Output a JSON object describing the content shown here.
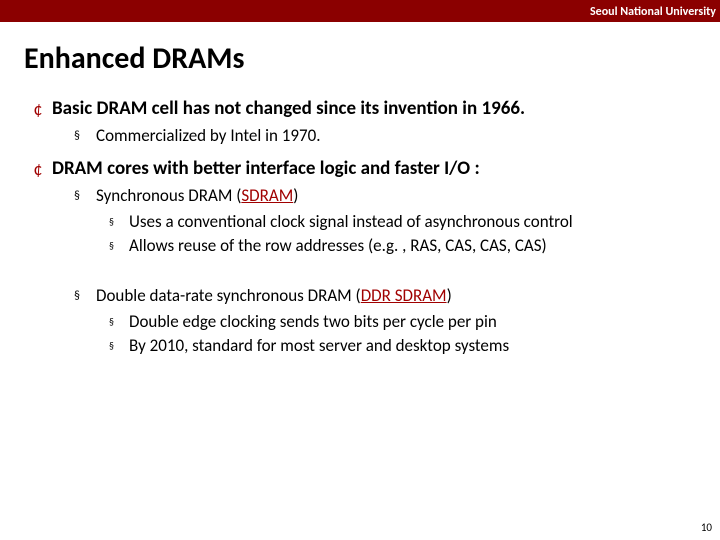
{
  "header": {
    "institution": "Seoul National University",
    "bar_color": "#8b0000",
    "text_color": "#ffffff"
  },
  "title": "Enhanced DRAMs",
  "accent_color": "#a00000",
  "bullets": {
    "b1": "Basic DRAM cell has not changed since its invention in 1966.",
    "b1_1": "Commercialized by Intel in 1970.",
    "b2": "DRAM cores with better interface logic and faster I/O :",
    "b2_1_pre": "Synchronous DRAM (",
    "b2_1_em": "SDRAM",
    "b2_1_post": ")",
    "b2_1_a": "Uses a conventional clock signal instead of asynchronous control",
    "b2_1_b": "Allows reuse of the row addresses (e.g. , RAS, CAS, CAS, CAS)",
    "b2_2_pre": "Double data-rate synchronous DRAM (",
    "b2_2_em": "DDR SDRAM",
    "b2_2_post": ")",
    "b2_2_a": "Double edge clocking sends two bits per cycle per pin",
    "b2_2_b": "By 2010, standard for most server and desktop systems"
  },
  "page_number": "10"
}
